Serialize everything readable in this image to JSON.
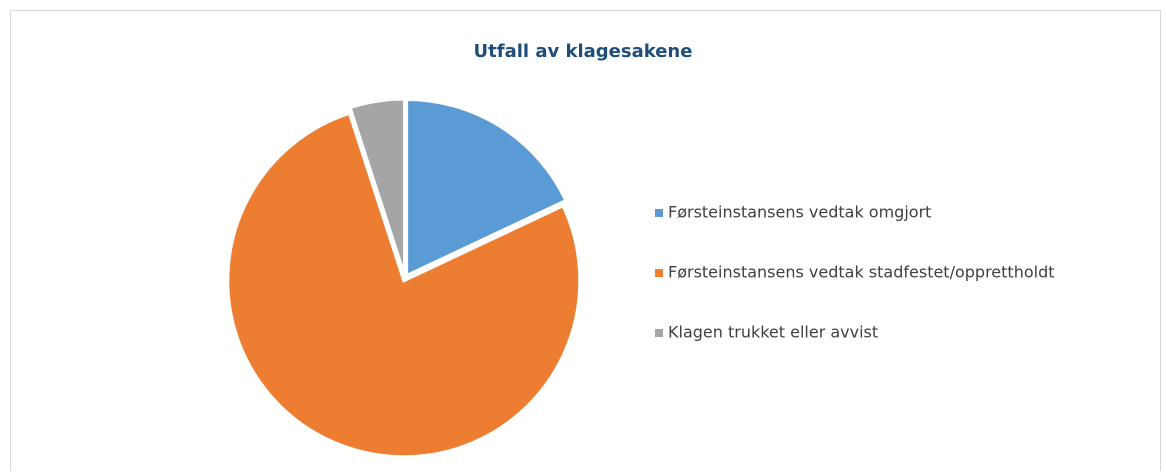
{
  "chart_data": {
    "type": "pie",
    "title": "Utfall av klagesakene",
    "categories": [
      "Førsteinstansens vedtak omgjort",
      "Førsteinstansens vedtak stadfestet/opprettholdt",
      "Klagen trukket eller avvist"
    ],
    "values": [
      18,
      77,
      5
    ],
    "colors": [
      "#5b9bd5",
      "#ed7d31",
      "#a5a5a5"
    ],
    "legend": "right"
  }
}
